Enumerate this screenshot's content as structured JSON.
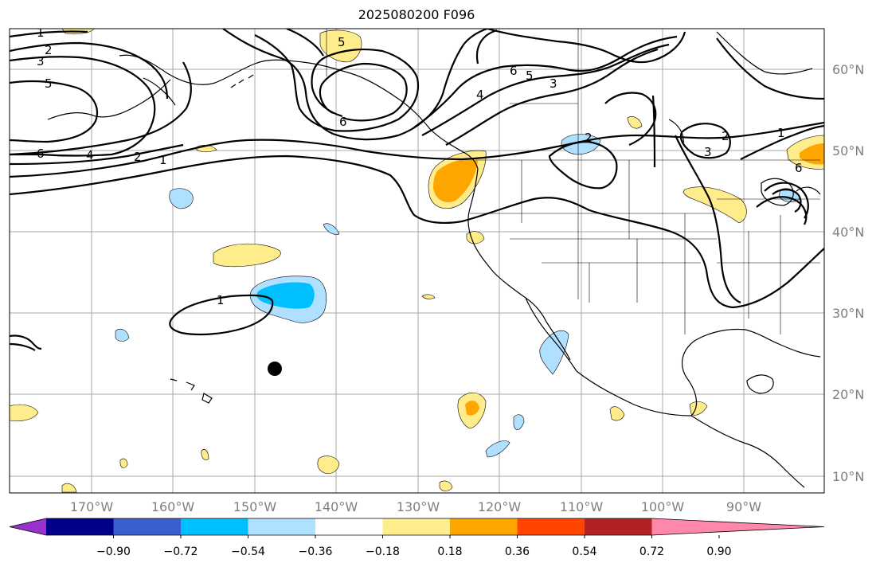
{
  "title": "2025080200 F096",
  "map": {
    "region": "North Pacific / North America",
    "lon_ticks": [
      "170°W",
      "160°W",
      "150°W",
      "140°W",
      "130°W",
      "120°W",
      "110°W",
      "100°W",
      "90°W"
    ],
    "lat_ticks": [
      "60°N",
      "50°N",
      "40°N",
      "30°N",
      "20°N",
      "10°N"
    ],
    "contour_labels": [
      "1",
      "2",
      "3",
      "5",
      "6",
      "4",
      "2",
      "1",
      "6",
      "5",
      "4",
      "6",
      "5",
      "3",
      "2",
      "2",
      "1",
      "3",
      "6",
      "1"
    ],
    "marker": "black-dot"
  },
  "colorbar": {
    "tick_labels": [
      "−0.90",
      "−0.72",
      "−0.54",
      "−0.36",
      "−0.18",
      "0.18",
      "0.36",
      "0.54",
      "0.72",
      "0.90"
    ],
    "colors": [
      "#9932cc",
      "#00008b",
      "#3a5fcd",
      "#00bfff",
      "#b0e0ff",
      "#ffffff",
      "#ffec8b",
      "#ffa500",
      "#ff4500",
      "#b22222",
      "#ff88aa"
    ]
  }
}
